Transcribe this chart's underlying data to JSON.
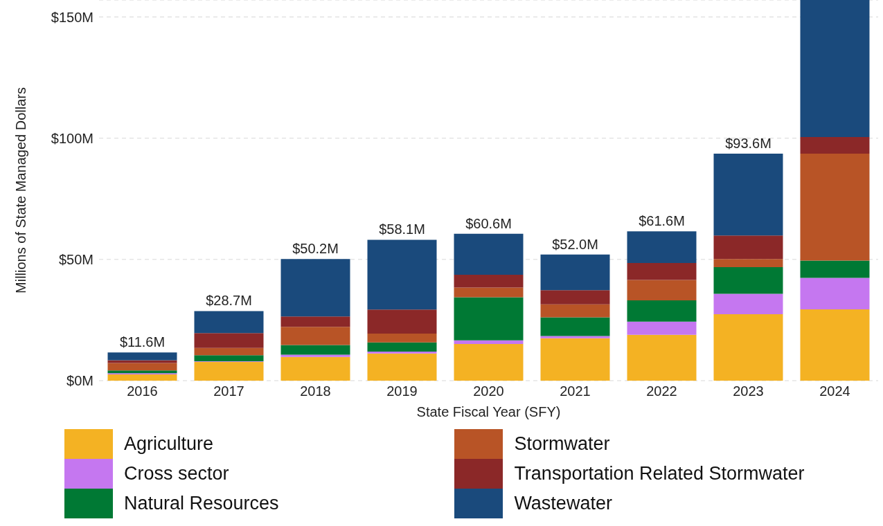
{
  "chart_data": {
    "type": "bar",
    "stacked": true,
    "xlabel": "State Fiscal Year (SFY)",
    "ylabel": "Millions of State Managed Dollars",
    "categories": [
      "2016",
      "2017",
      "2018",
      "2019",
      "2020",
      "2021",
      "2022",
      "2023",
      "2024"
    ],
    "series": [
      {
        "name": "Agriculture",
        "color": "#f4b223",
        "values": [
          2.6,
          7.8,
          9.8,
          11.2,
          15.1,
          17.5,
          18.9,
          27.4,
          29.4
        ]
      },
      {
        "name": "Cross sector",
        "color": "#c577f0",
        "values": [
          0.5,
          0.2,
          0.9,
          0.8,
          1.5,
          0.9,
          5.4,
          8.4,
          13.0
        ]
      },
      {
        "name": "Natural Resources",
        "color": "#007934",
        "values": [
          1.1,
          2.5,
          4.0,
          3.8,
          17.8,
          7.7,
          8.8,
          11.0,
          7.1
        ]
      },
      {
        "name": "Stormwater",
        "color": "#b85426",
        "values": [
          3.1,
          3.0,
          7.5,
          3.6,
          4.0,
          5.4,
          8.4,
          3.4,
          44.1
        ]
      },
      {
        "name": "Transportation Related Stormwater",
        "color": "#8b2828",
        "values": [
          1.1,
          6.1,
          4.3,
          9.9,
          5.3,
          5.8,
          7.0,
          9.7,
          6.9
        ]
      },
      {
        "name": "Wastewater",
        "color": "#1a4a7c",
        "values": [
          3.2,
          9.1,
          23.7,
          28.8,
          16.9,
          14.7,
          13.1,
          33.7,
          56.5
        ]
      }
    ],
    "totals": [
      "$11.6M",
      "$28.7M",
      "$50.2M",
      "$58.1M",
      "$60.6M",
      "$52.0M",
      "$61.6M",
      "$93.6M",
      null
    ],
    "ylim": [
      0,
      157
    ],
    "yticks": [
      {
        "value": 0,
        "label": "$0M"
      },
      {
        "value": 50,
        "label": "$50M"
      },
      {
        "value": 100,
        "label": "$100M"
      },
      {
        "value": 150,
        "label": "$150M"
      }
    ],
    "grid": "y",
    "legend": "bottom"
  }
}
